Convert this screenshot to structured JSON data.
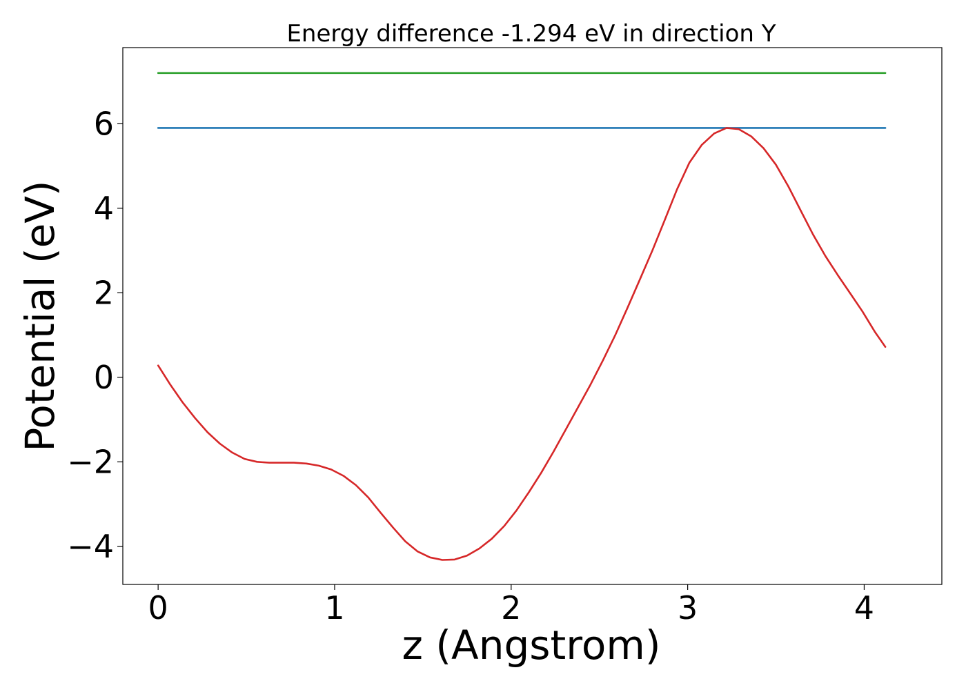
{
  "chart_data": {
    "type": "line",
    "title": "Energy difference -1.294 eV in direction Y",
    "xlabel": "z (Angstrom)",
    "ylabel": "Potential (eV)",
    "xlim": [
      -0.2,
      4.44
    ],
    "ylim": [
      -4.9,
      7.8
    ],
    "xticks": [
      0,
      1,
      2,
      3,
      4
    ],
    "xtick_labels": [
      "0",
      "1",
      "2",
      "3",
      "4"
    ],
    "yticks": [
      -4,
      -2,
      0,
      2,
      4,
      6
    ],
    "ytick_labels": [
      "−4",
      "−2",
      "0",
      "2",
      "4",
      "6"
    ],
    "grid": false,
    "legend": "none",
    "series": [
      {
        "color": "#2ca02c",
        "x": [
          0,
          4.12
        ],
        "y": [
          7.2,
          7.2
        ]
      },
      {
        "color": "#1f77b4",
        "x": [
          0,
          4.12
        ],
        "y": [
          5.9,
          5.9
        ]
      },
      {
        "color": "#d62728",
        "x": [
          0.0,
          0.07,
          0.14,
          0.21,
          0.28,
          0.35,
          0.42,
          0.49,
          0.56,
          0.63,
          0.7,
          0.77,
          0.84,
          0.91,
          0.98,
          1.05,
          1.12,
          1.19,
          1.26,
          1.33,
          1.4,
          1.47,
          1.54,
          1.61,
          1.68,
          1.75,
          1.82,
          1.89,
          1.96,
          2.03,
          2.1,
          2.17,
          2.24,
          2.31,
          2.38,
          2.45,
          2.52,
          2.59,
          2.66,
          2.73,
          2.8,
          2.87,
          2.94,
          3.01,
          3.08,
          3.15,
          3.22,
          3.29,
          3.36,
          3.43,
          3.5,
          3.57,
          3.64,
          3.71,
          3.78,
          3.85,
          3.92,
          3.99,
          4.06,
          4.12
        ],
        "y": [
          0.28,
          -0.18,
          -0.6,
          -0.97,
          -1.3,
          -1.57,
          -1.78,
          -1.93,
          -2.0,
          -2.02,
          -2.02,
          -2.02,
          -2.04,
          -2.09,
          -2.18,
          -2.33,
          -2.55,
          -2.84,
          -3.2,
          -3.55,
          -3.88,
          -4.12,
          -4.26,
          -4.32,
          -4.31,
          -4.22,
          -4.05,
          -3.82,
          -3.52,
          -3.15,
          -2.72,
          -2.26,
          -1.76,
          -1.23,
          -0.7,
          -0.17,
          0.4,
          1.0,
          1.65,
          2.32,
          3.0,
          3.72,
          4.45,
          5.08,
          5.5,
          5.77,
          5.9,
          5.87,
          5.7,
          5.42,
          5.03,
          4.52,
          3.95,
          3.38,
          2.87,
          2.42,
          1.99,
          1.56,
          1.08,
          0.72
        ]
      }
    ]
  }
}
